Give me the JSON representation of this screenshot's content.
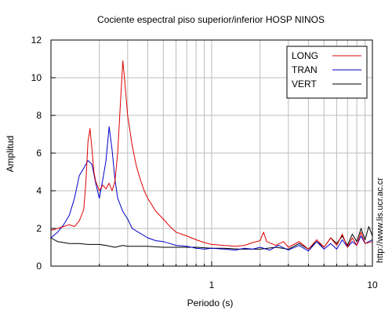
{
  "chart_data": {
    "type": "line",
    "title": "Cociente espectral piso superior/inferior  HOSP NINOS",
    "xlabel": "Periodo (s)",
    "ylabel": "Amplitud",
    "x_scale": "log",
    "xlim": [
      0.1,
      10
    ],
    "ylim": [
      0,
      12
    ],
    "grid": true,
    "legend_position": "top-right",
    "x_ticks": [
      {
        "value": 1,
        "label": "1"
      },
      {
        "value": 10,
        "label": "10"
      }
    ],
    "y_ticks": [
      {
        "value": 0,
        "label": "0"
      },
      {
        "value": 2,
        "label": "2"
      },
      {
        "value": 4,
        "label": "4"
      },
      {
        "value": 6,
        "label": "6"
      },
      {
        "value": 8,
        "label": "8"
      },
      {
        "value": 10,
        "label": "10"
      },
      {
        "value": 12,
        "label": "12"
      }
    ],
    "series": [
      {
        "name": "LONG",
        "color": "#e00000",
        "points": [
          [
            0.1,
            1.9
          ],
          [
            0.11,
            2.0
          ],
          [
            0.12,
            2.1
          ],
          [
            0.13,
            2.2
          ],
          [
            0.14,
            2.1
          ],
          [
            0.15,
            2.4
          ],
          [
            0.16,
            3.0
          ],
          [
            0.165,
            4.5
          ],
          [
            0.17,
            6.6
          ],
          [
            0.175,
            7.3
          ],
          [
            0.18,
            6.2
          ],
          [
            0.185,
            5.0
          ],
          [
            0.19,
            4.5
          ],
          [
            0.2,
            4.0
          ],
          [
            0.21,
            4.3
          ],
          [
            0.22,
            4.1
          ],
          [
            0.23,
            4.4
          ],
          [
            0.24,
            4.0
          ],
          [
            0.25,
            4.5
          ],
          [
            0.26,
            6.0
          ],
          [
            0.27,
            8.5
          ],
          [
            0.28,
            10.9
          ],
          [
            0.29,
            9.5
          ],
          [
            0.3,
            8.0
          ],
          [
            0.32,
            6.4
          ],
          [
            0.34,
            5.3
          ],
          [
            0.36,
            4.6
          ],
          [
            0.38,
            4.0
          ],
          [
            0.4,
            3.6
          ],
          [
            0.45,
            2.9
          ],
          [
            0.5,
            2.5
          ],
          [
            0.55,
            2.1
          ],
          [
            0.6,
            1.8
          ],
          [
            0.7,
            1.6
          ],
          [
            0.8,
            1.4
          ],
          [
            0.9,
            1.25
          ],
          [
            1.0,
            1.15
          ],
          [
            1.2,
            1.1
          ],
          [
            1.4,
            1.05
          ],
          [
            1.6,
            1.1
          ],
          [
            1.8,
            1.25
          ],
          [
            2.0,
            1.35
          ],
          [
            2.1,
            1.8
          ],
          [
            2.2,
            1.3
          ],
          [
            2.5,
            1.1
          ],
          [
            2.8,
            1.3
          ],
          [
            3.0,
            1.0
          ],
          [
            3.5,
            1.3
          ],
          [
            4.0,
            0.9
          ],
          [
            4.5,
            1.4
          ],
          [
            5.0,
            1.0
          ],
          [
            5.5,
            1.5
          ],
          [
            6.0,
            1.1
          ],
          [
            6.5,
            1.7
          ],
          [
            7.0,
            1.0
          ],
          [
            7.5,
            1.5
          ],
          [
            8.0,
            1.1
          ],
          [
            8.5,
            1.8
          ],
          [
            9.0,
            1.2
          ],
          [
            10.0,
            1.3
          ]
        ]
      },
      {
        "name": "TRAN",
        "color": "#0000cc",
        "points": [
          [
            0.1,
            1.5
          ],
          [
            0.11,
            1.8
          ],
          [
            0.12,
            2.2
          ],
          [
            0.13,
            2.7
          ],
          [
            0.14,
            3.6
          ],
          [
            0.15,
            4.8
          ],
          [
            0.16,
            5.2
          ],
          [
            0.17,
            5.6
          ],
          [
            0.18,
            5.4
          ],
          [
            0.19,
            4.4
          ],
          [
            0.2,
            3.6
          ],
          [
            0.21,
            4.6
          ],
          [
            0.22,
            5.6
          ],
          [
            0.23,
            7.4
          ],
          [
            0.24,
            6.2
          ],
          [
            0.25,
            4.6
          ],
          [
            0.26,
            3.6
          ],
          [
            0.28,
            2.9
          ],
          [
            0.3,
            2.5
          ],
          [
            0.32,
            2.0
          ],
          [
            0.35,
            1.8
          ],
          [
            0.4,
            1.5
          ],
          [
            0.45,
            1.35
          ],
          [
            0.5,
            1.3
          ],
          [
            0.55,
            1.2
          ],
          [
            0.6,
            1.1
          ],
          [
            0.7,
            1.05
          ],
          [
            0.8,
            0.95
          ],
          [
            0.9,
            0.9
          ],
          [
            1.0,
            0.95
          ],
          [
            1.2,
            0.9
          ],
          [
            1.4,
            0.85
          ],
          [
            1.6,
            0.95
          ],
          [
            1.8,
            0.9
          ],
          [
            2.0,
            1.0
          ],
          [
            2.3,
            0.85
          ],
          [
            2.6,
            1.1
          ],
          [
            3.0,
            0.85
          ],
          [
            3.5,
            1.1
          ],
          [
            4.0,
            0.8
          ],
          [
            4.5,
            1.3
          ],
          [
            5.0,
            0.9
          ],
          [
            5.5,
            1.2
          ],
          [
            6.0,
            0.9
          ],
          [
            6.5,
            1.4
          ],
          [
            7.0,
            1.0
          ],
          [
            7.5,
            1.3
          ],
          [
            8.0,
            1.1
          ],
          [
            8.5,
            1.6
          ],
          [
            9.0,
            1.2
          ],
          [
            10.0,
            1.4
          ]
        ]
      },
      {
        "name": "VERT",
        "color": "#000000",
        "points": [
          [
            0.1,
            1.5
          ],
          [
            0.11,
            1.3
          ],
          [
            0.12,
            1.25
          ],
          [
            0.13,
            1.2
          ],
          [
            0.15,
            1.2
          ],
          [
            0.17,
            1.15
          ],
          [
            0.2,
            1.15
          ],
          [
            0.22,
            1.1
          ],
          [
            0.25,
            1.0
          ],
          [
            0.28,
            1.1
          ],
          [
            0.3,
            1.05
          ],
          [
            0.35,
            1.05
          ],
          [
            0.4,
            1.05
          ],
          [
            0.5,
            1.0
          ],
          [
            0.6,
            1.0
          ],
          [
            0.7,
            1.0
          ],
          [
            0.8,
            1.0
          ],
          [
            1.0,
            0.95
          ],
          [
            1.2,
            0.95
          ],
          [
            1.5,
            0.9
          ],
          [
            2.0,
            0.9
          ],
          [
            2.5,
            1.0
          ],
          [
            3.0,
            0.9
          ],
          [
            3.5,
            1.2
          ],
          [
            4.0,
            0.9
          ],
          [
            4.5,
            1.3
          ],
          [
            5.0,
            1.0
          ],
          [
            5.5,
            1.5
          ],
          [
            6.0,
            1.2
          ],
          [
            6.5,
            1.6
          ],
          [
            7.0,
            1.1
          ],
          [
            7.5,
            1.7
          ],
          [
            8.0,
            1.3
          ],
          [
            8.5,
            2.0
          ],
          [
            9.0,
            1.4
          ],
          [
            9.5,
            2.1
          ],
          [
            10.0,
            1.6
          ]
        ]
      }
    ]
  },
  "side_text": "http://www.lis.ucr.ac.cr"
}
